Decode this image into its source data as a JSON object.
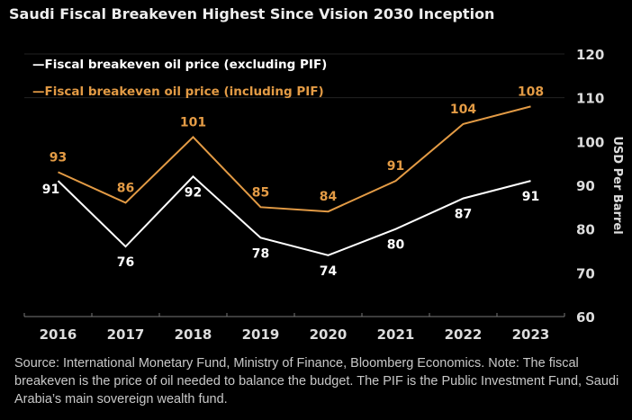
{
  "title": "Saudi Fiscal Breakeven Highest Since Vision 2030 Inception",
  "note": "Source: International Monetary Fund, Ministry of Finance, Bloomberg Economics. Note: The fiscal breakeven is the price of oil needed to balance the budget. The PIF is the Public Investment Fund, Saudi Arabia’s main sovereign wealth fund.",
  "chart_data": {
    "type": "line",
    "categories": [
      "2016",
      "2017",
      "2018",
      "2019",
      "2020",
      "2021",
      "2022",
      "2023"
    ],
    "series": [
      {
        "name": "Fiscal breakeven oil price (excluding PIF)",
        "values": [
          91,
          76,
          92,
          78,
          74,
          80,
          87,
          91
        ],
        "color": "#ffffff"
      },
      {
        "name": "Fiscal breakeven oil price (including PIF)",
        "values": [
          93,
          86,
          101,
          85,
          84,
          91,
          104,
          108
        ],
        "color": "#e39b45"
      }
    ],
    "ylabel": "USD Per Barrel",
    "ylim": [
      60,
      120
    ],
    "yticks": [
      60,
      70,
      80,
      90,
      100,
      110,
      120
    ],
    "y_axis_side": "right",
    "legend": "top-left",
    "data_labels": true
  }
}
